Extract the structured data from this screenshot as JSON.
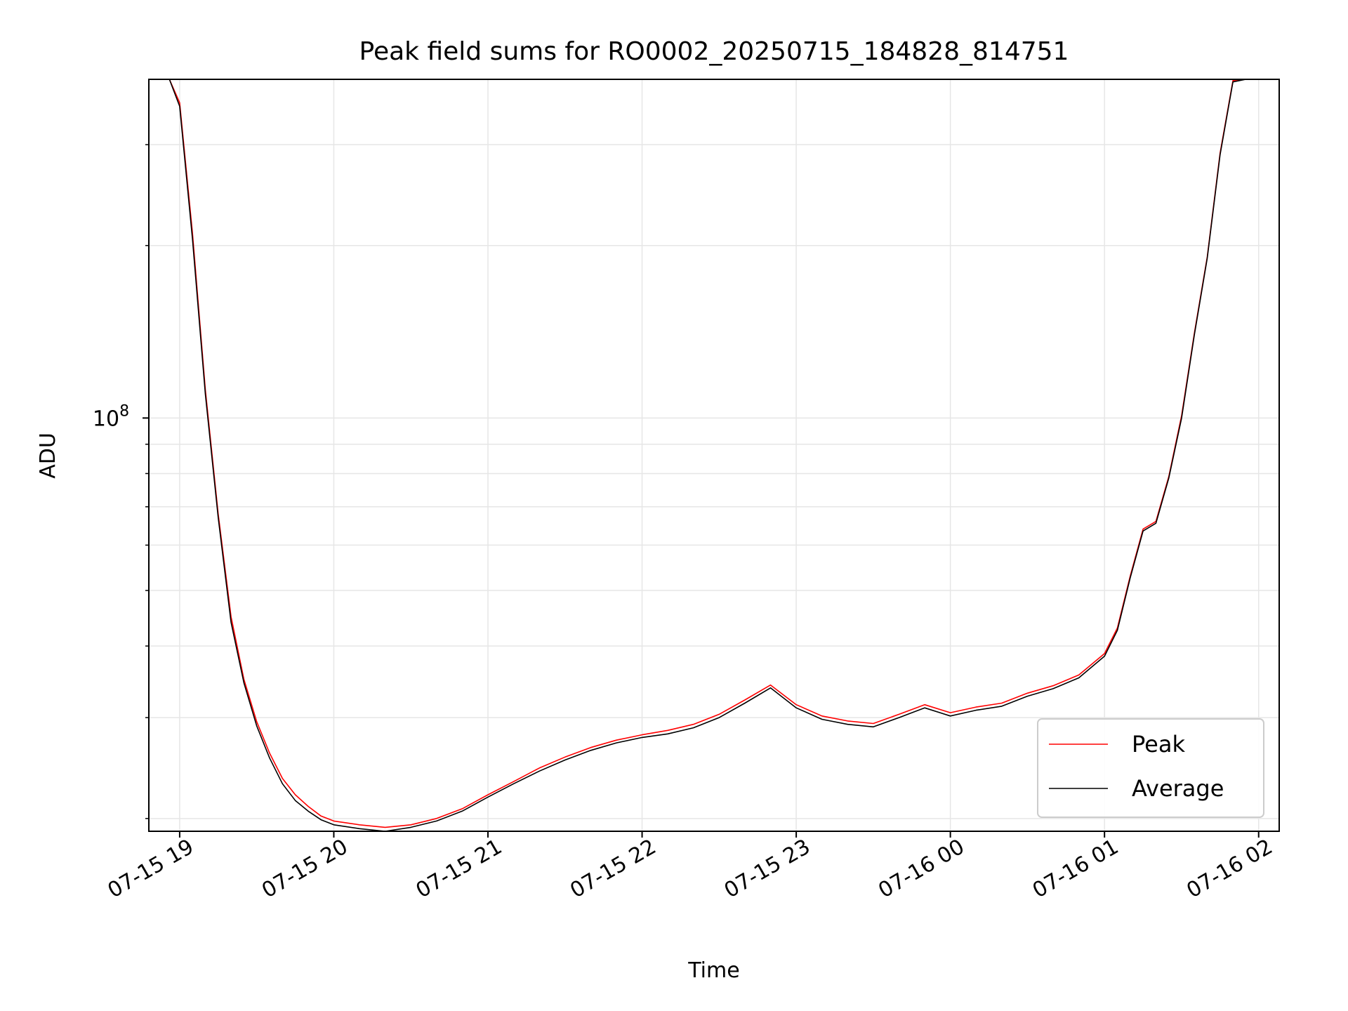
{
  "chart_data": {
    "type": "line",
    "title": "Peak field sums for RO0002_20250715_184828_814751",
    "xlabel": "Time",
    "ylabel": "ADU",
    "y_scale": "log",
    "grid": true,
    "legend_position": "lower-right",
    "xlim": [
      "2025-07-15 18:48",
      "2025-07-16 02:08"
    ],
    "ylim": [
      19000000,
      390000000
    ],
    "x_ticks": [
      "07-15 19",
      "07-15 20",
      "07-15 21",
      "07-15 22",
      "07-15 23",
      "07-16 00",
      "07-16 01",
      "07-16 02"
    ],
    "y_tick_labels": [
      {
        "base": "10",
        "exp": "8"
      }
    ],
    "series": [
      {
        "name": "Peak",
        "color": "#ff0000",
        "x": [
          "2025-07-15 18:56",
          "2025-07-15 19:00",
          "2025-07-15 19:05",
          "2025-07-15 19:10",
          "2025-07-15 19:15",
          "2025-07-15 19:20",
          "2025-07-15 19:25",
          "2025-07-15 19:30",
          "2025-07-15 19:35",
          "2025-07-15 19:40",
          "2025-07-15 19:45",
          "2025-07-15 19:50",
          "2025-07-15 19:55",
          "2025-07-15 20:00",
          "2025-07-15 20:10",
          "2025-07-15 20:20",
          "2025-07-15 20:30",
          "2025-07-15 20:40",
          "2025-07-15 20:50",
          "2025-07-15 21:00",
          "2025-07-15 21:10",
          "2025-07-15 21:20",
          "2025-07-15 21:30",
          "2025-07-15 21:40",
          "2025-07-15 21:50",
          "2025-07-15 22:00",
          "2025-07-15 22:10",
          "2025-07-15 22:20",
          "2025-07-15 22:30",
          "2025-07-15 22:40",
          "2025-07-15 22:50",
          "2025-07-15 23:00",
          "2025-07-15 23:10",
          "2025-07-15 23:20",
          "2025-07-15 23:30",
          "2025-07-15 23:40",
          "2025-07-15 23:50",
          "2025-07-16 00:00",
          "2025-07-16 00:10",
          "2025-07-16 00:20",
          "2025-07-16 00:30",
          "2025-07-16 00:40",
          "2025-07-16 00:50",
          "2025-07-16 01:00",
          "2025-07-16 01:05",
          "2025-07-16 01:10",
          "2025-07-16 01:15",
          "2025-07-16 01:20",
          "2025-07-16 01:25",
          "2025-07-16 01:30",
          "2025-07-16 01:35",
          "2025-07-16 01:40",
          "2025-07-16 01:45",
          "2025-07-16 01:50",
          "2025-07-16 01:55"
        ],
        "y": [
          390000000,
          355000000,
          210000000,
          112000000,
          68000000,
          45000000,
          35000000,
          29500000,
          26000000,
          23500000,
          22000000,
          21000000,
          20200000,
          19800000,
          19500000,
          19300000,
          19500000,
          20000000,
          20800000,
          22000000,
          23200000,
          24500000,
          25600000,
          26600000,
          27400000,
          28000000,
          28500000,
          29200000,
          30400000,
          32200000,
          34200000,
          31600000,
          30200000,
          29600000,
          29300000,
          30400000,
          31600000,
          30600000,
          31300000,
          31800000,
          33100000,
          34100000,
          35600000,
          38800000,
          43000000,
          53000000,
          64000000,
          66000000,
          79000000,
          101000000,
          141000000,
          191000000,
          290000000,
          388000000,
          390000000
        ]
      },
      {
        "name": "Average",
        "color": "#000000",
        "x": [
          "2025-07-15 18:56",
          "2025-07-15 19:00",
          "2025-07-15 19:05",
          "2025-07-15 19:10",
          "2025-07-15 19:15",
          "2025-07-15 19:20",
          "2025-07-15 19:25",
          "2025-07-15 19:30",
          "2025-07-15 19:35",
          "2025-07-15 19:40",
          "2025-07-15 19:45",
          "2025-07-15 19:50",
          "2025-07-15 19:55",
          "2025-07-15 20:00",
          "2025-07-15 20:10",
          "2025-07-15 20:20",
          "2025-07-15 20:30",
          "2025-07-15 20:40",
          "2025-07-15 20:50",
          "2025-07-15 21:00",
          "2025-07-15 21:10",
          "2025-07-15 21:20",
          "2025-07-15 21:30",
          "2025-07-15 21:40",
          "2025-07-15 21:50",
          "2025-07-15 22:00",
          "2025-07-15 22:10",
          "2025-07-15 22:20",
          "2025-07-15 22:30",
          "2025-07-15 22:40",
          "2025-07-15 22:50",
          "2025-07-15 23:00",
          "2025-07-15 23:10",
          "2025-07-15 23:20",
          "2025-07-15 23:30",
          "2025-07-15 23:40",
          "2025-07-15 23:50",
          "2025-07-16 00:00",
          "2025-07-16 00:10",
          "2025-07-16 00:20",
          "2025-07-16 00:30",
          "2025-07-16 00:40",
          "2025-07-16 00:50",
          "2025-07-16 01:00",
          "2025-07-16 01:05",
          "2025-07-16 01:10",
          "2025-07-16 01:15",
          "2025-07-16 01:20",
          "2025-07-16 01:25",
          "2025-07-16 01:30",
          "2025-07-16 01:35",
          "2025-07-16 01:40",
          "2025-07-16 01:45",
          "2025-07-16 01:50",
          "2025-07-16 01:55"
        ],
        "y": [
          390000000,
          350000000,
          205000000,
          110000000,
          67000000,
          44000000,
          34500000,
          29000000,
          25500000,
          23000000,
          21500000,
          20600000,
          19900000,
          19500000,
          19200000,
          19000000,
          19300000,
          19800000,
          20600000,
          21800000,
          23000000,
          24200000,
          25300000,
          26300000,
          27100000,
          27700000,
          28100000,
          28800000,
          30000000,
          31800000,
          33800000,
          31200000,
          29800000,
          29200000,
          28900000,
          30000000,
          31200000,
          30200000,
          30900000,
          31400000,
          32700000,
          33700000,
          35200000,
          38400000,
          42600000,
          52600000,
          63500000,
          65500000,
          78500000,
          100000000,
          140000000,
          190000000,
          288000000,
          386000000,
          390000000
        ]
      }
    ]
  }
}
